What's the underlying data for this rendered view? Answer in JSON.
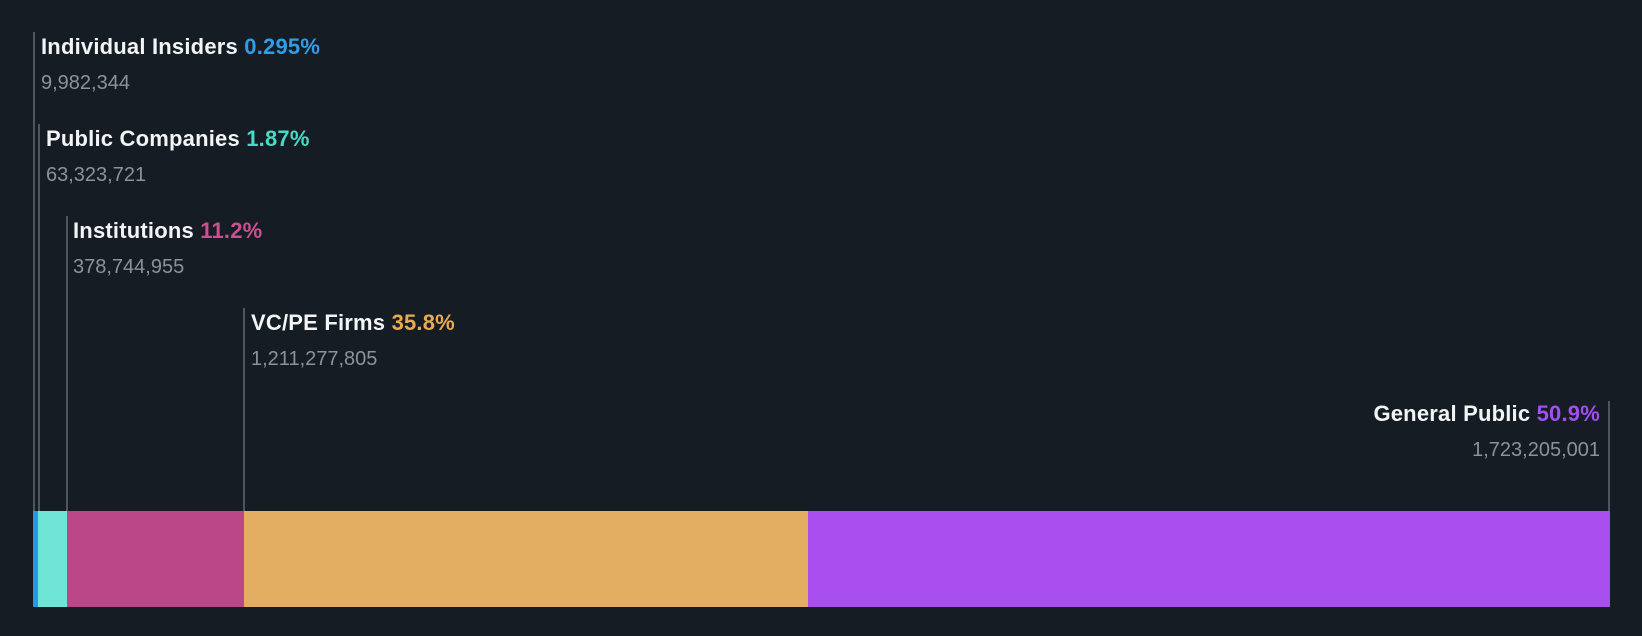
{
  "chart_data": {
    "type": "bar",
    "variant": "horizontal-stacked-ownership-breakdown",
    "categories": [
      "Individual Insiders",
      "Public Companies",
      "Institutions",
      "VC/PE Firms",
      "General Public"
    ],
    "values": [
      0.295,
      1.87,
      11.2,
      35.8,
      50.9
    ],
    "series": [
      {
        "label": "Individual Insiders",
        "percent": "0.295%",
        "value": 0.295,
        "shares": "9,982,344",
        "bar_color": "#2B96E2",
        "text_color": "#2E9EE8"
      },
      {
        "label": "Public Companies",
        "percent": "1.87%",
        "value": 1.87,
        "shares": "63,323,721",
        "bar_color": "#6FE5D6",
        "text_color": "#48DAC5"
      },
      {
        "label": "Institutions",
        "percent": "11.2%",
        "value": 11.2,
        "shares": "378,744,955",
        "bar_color": "#BB4787",
        "text_color": "#CB5092"
      },
      {
        "label": "VC/PE Firms",
        "percent": "35.8%",
        "value": 35.8,
        "shares": "1,211,277,805",
        "bar_color": "#E3AE62",
        "text_color": "#EAAA50"
      },
      {
        "label": "General Public",
        "percent": "50.9%",
        "value": 50.9,
        "shares": "1,723,205,001",
        "bar_color": "#A84EEE",
        "text_color": "#A14FF2"
      }
    ],
    "layout_hints": {
      "orientation": "horizontal",
      "stacked": true,
      "legend": "callout-labels-with-connector-lines",
      "background": "#151C24"
    }
  },
  "colors": {
    "background": "#151C24",
    "label_text": "#F2F4F6",
    "shares_text": "#8B929A",
    "connector_line": "#4D555F"
  }
}
